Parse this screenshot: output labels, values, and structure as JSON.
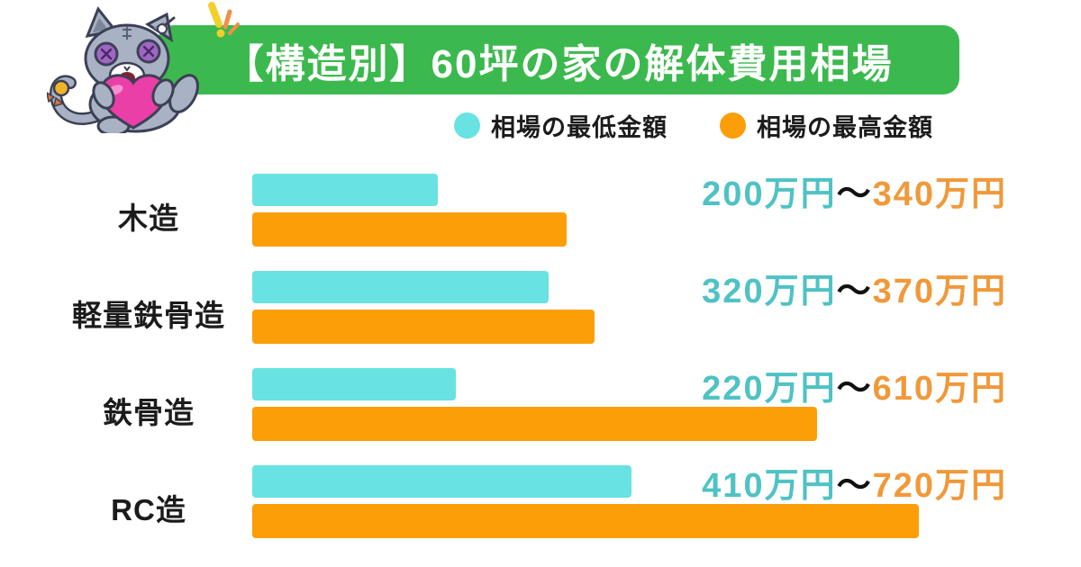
{
  "header": {
    "title": "【構造別】60坪の家の解体費用相場",
    "banner_color": "#3cb94e",
    "mascot": "plush-cat-hugging-heart"
  },
  "legend": {
    "min": {
      "label": "相場の最低金額",
      "color": "#68e2e2"
    },
    "max": {
      "label": "相場の最高金額",
      "color": "#fb9e07"
    }
  },
  "chart_data": {
    "type": "bar",
    "orientation": "horizontal",
    "title": "【構造別】60坪の家の解体費用相場",
    "unit": "万円",
    "range_separator": "～",
    "axis_max": 720,
    "grid": false,
    "legend_position": "top",
    "categories": [
      "木造",
      "軽量鉄骨造",
      "鉄骨造",
      "RC造"
    ],
    "series": [
      {
        "name": "相場の最低金額",
        "color": "#68e2e2",
        "text_color": "#4fc2c4",
        "values": [
          200,
          320,
          220,
          410
        ]
      },
      {
        "name": "相場の最高金額",
        "color": "#fb9e07",
        "text_color": "#f0993a",
        "values": [
          340,
          370,
          610,
          720
        ]
      }
    ],
    "value_labels": [
      "200万円～340万円",
      "320万円～370万円",
      "220万円～610万円",
      "410万円～720万円"
    ]
  }
}
